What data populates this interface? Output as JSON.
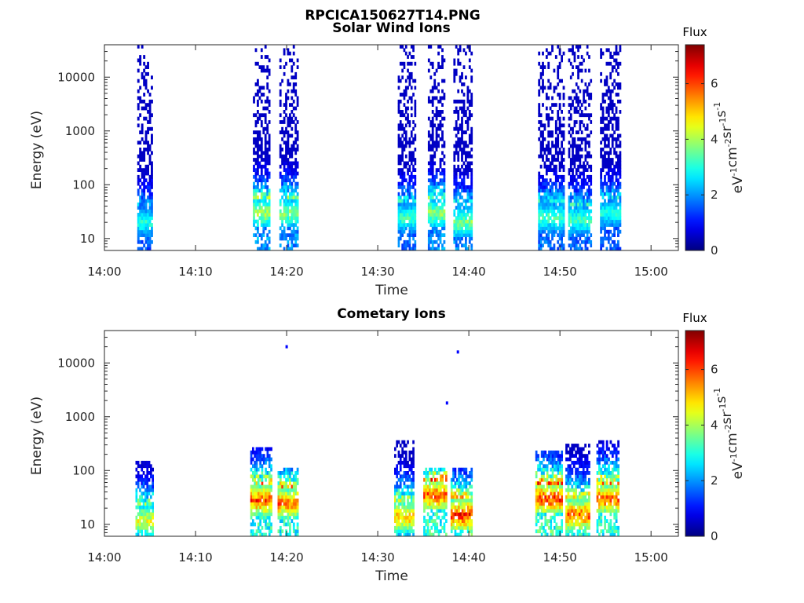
{
  "figure_title": "RPCICA150627T14.PNG",
  "chart_data": [
    {
      "type": "heatmap",
      "title": "Solar Wind Ions",
      "xlabel": "Time",
      "ylabel": "Energy (eV)",
      "y_scale": "log",
      "ylim": [
        6,
        40000
      ],
      "xlim": [
        "14:00",
        "15:03"
      ],
      "x_ticks": [
        "14:00",
        "14:10",
        "14:20",
        "14:30",
        "14:40",
        "14:50",
        "15:00"
      ],
      "y_ticks": [
        "10",
        "100",
        "1000",
        "10000"
      ],
      "colorbar": {
        "title": "Flux",
        "label": "eV-1cm-2sr-1s-1",
        "range": [
          0,
          7.4
        ],
        "ticks": [
          "0",
          "2",
          "4",
          "6"
        ],
        "colormap": "jet"
      },
      "bursts": [
        {
          "t_start": "14:03.6",
          "t_end": "14:05.3",
          "e_low": 6,
          "e_high": 40000,
          "peak_flux": 3.5,
          "core_e": 20
        },
        {
          "t_start": "14:16.3",
          "t_end": "14:18.2",
          "e_low": 6,
          "e_high": 40000,
          "peak_flux": 4.6,
          "core_e": 30
        },
        {
          "t_start": "14:19.2",
          "t_end": "14:21.3",
          "e_low": 6,
          "e_high": 40000,
          "peak_flux": 4.4,
          "core_e": 30
        },
        {
          "t_start": "14:32.2",
          "t_end": "14:34.2",
          "e_low": 6,
          "e_high": 40000,
          "peak_flux": 3.8,
          "core_e": 25
        },
        {
          "t_start": "14:35.5",
          "t_end": "14:37.4",
          "e_low": 6,
          "e_high": 40000,
          "peak_flux": 4.4,
          "core_e": 30
        },
        {
          "t_start": "14:38.3",
          "t_end": "14:40.4",
          "e_low": 6,
          "e_high": 40000,
          "peak_flux": 4.3,
          "core_e": 20
        },
        {
          "t_start": "14:47.6",
          "t_end": "14:50.5",
          "e_low": 6,
          "e_high": 40000,
          "peak_flux": 3.8,
          "core_e": 25
        },
        {
          "t_start": "14:50.9",
          "t_end": "14:53.5",
          "e_low": 6,
          "e_high": 40000,
          "peak_flux": 3.8,
          "core_e": 22
        },
        {
          "t_start": "14:54.4",
          "t_end": "14:56.7",
          "e_low": 6,
          "e_high": 40000,
          "peak_flux": 3.5,
          "core_e": 30
        }
      ]
    },
    {
      "type": "heatmap",
      "title": "Cometary Ions",
      "xlabel": "Time",
      "ylabel": "Energy (eV)",
      "y_scale": "log",
      "ylim": [
        6,
        40000
      ],
      "xlim": [
        "14:00",
        "15:03"
      ],
      "x_ticks": [
        "14:00",
        "14:10",
        "14:20",
        "14:30",
        "14:40",
        "14:50",
        "15:00"
      ],
      "y_ticks": [
        "10",
        "100",
        "1000",
        "10000"
      ],
      "colorbar": {
        "title": "Flux",
        "label": "eV-1cm-2sr-1s-1",
        "range": [
          0,
          7.4
        ],
        "ticks": [
          "0",
          "2",
          "4",
          "6"
        ],
        "colormap": "jet"
      },
      "bursts": [
        {
          "t_start": "14:03.4",
          "t_end": "14:05.4",
          "e_low": 6,
          "e_high": 160,
          "peak_flux": 5.2,
          "core_e": 12
        },
        {
          "t_start": "14:16.0",
          "t_end": "14:18.4",
          "e_low": 6,
          "e_high": 260,
          "peak_flux": 6.8,
          "core_e": 28
        },
        {
          "t_start": "14:19.0",
          "t_end": "14:21.3",
          "e_low": 6,
          "e_high": 120,
          "peak_flux": 6.6,
          "core_e": 25
        },
        {
          "t_start": "14:31.8",
          "t_end": "14:34.0",
          "e_low": 6,
          "e_high": 380,
          "peak_flux": 6.0,
          "core_e": 14
        },
        {
          "t_start": "14:35.0",
          "t_end": "14:37.6",
          "e_low": 6,
          "e_high": 120,
          "peak_flux": 6.9,
          "core_e": 35
        },
        {
          "t_start": "14:38.0",
          "t_end": "14:40.4",
          "e_low": 6,
          "e_high": 120,
          "peak_flux": 7.2,
          "core_e": 15
        },
        {
          "t_start": "14:47.3",
          "t_end": "14:50.3",
          "e_low": 6,
          "e_high": 220,
          "peak_flux": 7.1,
          "core_e": 30
        },
        {
          "t_start": "14:50.6",
          "t_end": "14:53.3",
          "e_low": 6,
          "e_high": 320,
          "peak_flux": 6.8,
          "core_e": 15
        },
        {
          "t_start": "14:54.0",
          "t_end": "14:56.5",
          "e_low": 6,
          "e_high": 350,
          "peak_flux": 6.8,
          "core_e": 30
        }
      ],
      "isolated_points": [
        {
          "t": "14:20.0",
          "e": 20000
        },
        {
          "t": "14:38.8",
          "e": 16000
        },
        {
          "t": "14:37.6",
          "e": 1800
        }
      ]
    }
  ]
}
